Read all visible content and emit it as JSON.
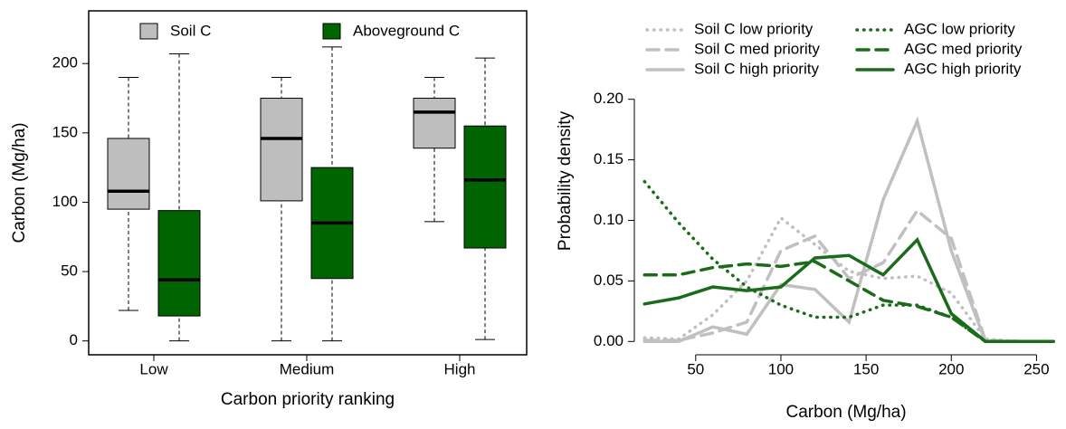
{
  "chart_data": [
    {
      "type": "box",
      "xlabel": "Carbon priority ranking",
      "ylabel": "Carbon (Mg/ha)",
      "categories": [
        "Low",
        "Medium",
        "High"
      ],
      "series": [
        {
          "name": "Soil C",
          "color": "#bebebe",
          "min": [
            22,
            0,
            86
          ],
          "q1": [
            95,
            101,
            139
          ],
          "median": [
            108,
            146,
            165
          ],
          "q3": [
            146,
            175,
            175
          ],
          "max": [
            190,
            190,
            190
          ]
        },
        {
          "name": "Aboveground C",
          "color": "#006400",
          "min": [
            0,
            0,
            1
          ],
          "q1": [
            18,
            45,
            67
          ],
          "median": [
            44,
            85,
            116
          ],
          "q3": [
            94,
            125,
            155
          ],
          "max": [
            207,
            212,
            204
          ]
        }
      ],
      "ylim": [
        -10,
        238
      ],
      "yticks": [
        0,
        50,
        100,
        150,
        200
      ],
      "legend": "top"
    },
    {
      "type": "line",
      "xlabel": "Carbon (Mg/ha)",
      "ylabel": "Probability density",
      "x": [
        20,
        40,
        60,
        80,
        100,
        120,
        140,
        160,
        180,
        200,
        220,
        240,
        260
      ],
      "series": [
        {
          "name": "Soil C low priority",
          "color": "#c0c0c0",
          "style": "dotted",
          "values": [
            0.003,
            0.002,
            0.022,
            0.05,
            0.102,
            0.08,
            0.058,
            0.052,
            0.054,
            0.04,
            0.002,
            0,
            0
          ]
        },
        {
          "name": "Soil C med priority",
          "color": "#c0c0c0",
          "style": "dashed",
          "values": [
            0.001,
            0.001,
            0.007,
            0.016,
            0.075,
            0.087,
            0.052,
            0.065,
            0.108,
            0.085,
            0.001,
            0,
            0
          ]
        },
        {
          "name": "Soil C high priority",
          "color": "#c0c0c0",
          "style": "solid",
          "values": [
            0,
            0,
            0.012,
            0.006,
            0.047,
            0.043,
            0.016,
            0.117,
            0.182,
            0.075,
            0,
            0,
            0
          ]
        },
        {
          "name": "AGC low priority",
          "color": "#1a6b1a",
          "style": "dotted",
          "values": [
            0.132,
            0.098,
            0.068,
            0.045,
            0.03,
            0.02,
            0.02,
            0.03,
            0.03,
            0.02,
            0,
            0,
            0
          ]
        },
        {
          "name": "AGC med priority",
          "color": "#1a6b1a",
          "style": "dashed",
          "values": [
            0.055,
            0.055,
            0.061,
            0.064,
            0.062,
            0.066,
            0.05,
            0.034,
            0.029,
            0.02,
            0,
            0,
            0
          ]
        },
        {
          "name": "AGC high priority",
          "color": "#1a6b1a",
          "style": "solid",
          "values": [
            0.031,
            0.036,
            0.045,
            0.042,
            0.045,
            0.069,
            0.071,
            0.055,
            0.084,
            0.023,
            0,
            0,
            0
          ]
        }
      ],
      "xlim": [
        14,
        262
      ],
      "xticks": [
        50,
        100,
        150,
        200,
        250
      ],
      "ylim": [
        -0.011,
        0.273
      ],
      "yticks": [
        {
          "value": 0,
          "label": "0.00"
        },
        {
          "value": 0.05,
          "label": "0.05"
        },
        {
          "value": 0.1,
          "label": "0.10"
        },
        {
          "value": 0.15,
          "label": "0.15"
        },
        {
          "value": 0.2,
          "label": "0.20"
        }
      ],
      "legend": "top"
    }
  ]
}
